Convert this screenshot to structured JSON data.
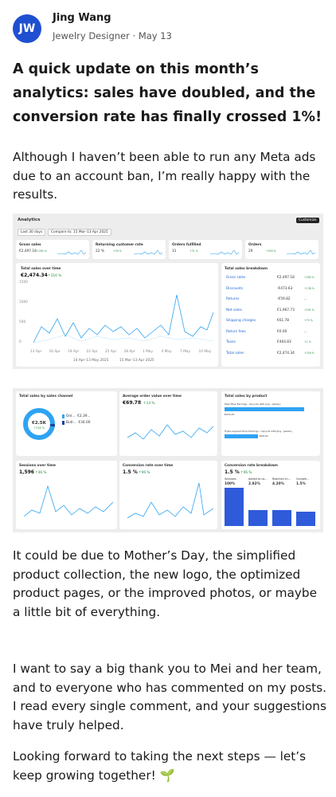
{
  "post": {
    "avatar": "JW",
    "author": "Jing Wang",
    "role": "Jewelry Designer",
    "separator": "·",
    "date": "May 13",
    "title": "A quick update on this month’s analytics: sales have doubled, and the conversion rate has finally crossed 1%!",
    "paragraphs": [
      "Although I haven’t been able to run any Meta ads due to an account ban, I’m really happy with the results.",
      "It could be due to Mother’s Day, the simplified product collection, the new logo, the optimized product pages, or the improved photos, or maybe a little bit of everything.",
      "I want to say a big thank you to Mei and her team, and to everyone who has commented on my posts. I read every single comment, and your suggestions have truly helped.",
      "Looking forward to taking the next steps — let’s keep growing together! 🌱"
    ]
  },
  "dashboard1": {
    "title": "Analytics",
    "button": "Customize",
    "filters": [
      "Last 30 days",
      "Compare to: 15 Mar–13 Apr 2025"
    ],
    "metrics": [
      {
        "label": "Gross sales",
        "value": "€2,497.18",
        "change": "↑282 %"
      },
      {
        "label": "Returning customer rate",
        "value": "22 %",
        "change": "↑30 %"
      },
      {
        "label": "Orders fulfilled",
        "value": "31",
        "change": "↑31 %"
      },
      {
        "label": "Orders",
        "value": "29",
        "change": "↑303 %"
      }
    ],
    "chart": {
      "title": "Total sales over time",
      "value": "€2,474.34",
      "change": "↑316 %",
      "yticks": [
        "1500",
        "1000",
        "500",
        "0"
      ],
      "xlabels": [
        "13 Apr",
        "16 Apr",
        "19 Apr",
        "22 Apr",
        "25 Apr",
        "28 Apr",
        "1 May",
        "4 May",
        "7 May",
        "10 May"
      ],
      "legend": [
        "14 Apr–13 May 2025",
        "15 Mar–13 Apr 2025"
      ]
    },
    "breakdown": {
      "title": "Total sales breakdown",
      "rows": [
        [
          "Gross sales",
          "€2,497.18",
          "↑282 %"
        ],
        [
          "Discounts",
          "-€473.63",
          "↑138 %"
        ],
        [
          "Returns",
          "-€59.82",
          "—"
        ],
        [
          "Net sales",
          "€1,967.73",
          "↑291 %"
        ],
        [
          "Shipping charges",
          "€61.78",
          "↑75 %"
        ],
        [
          "Return fees",
          "€0.00",
          "—"
        ],
        [
          "Taxes",
          "€464.83",
          "↑1 %"
        ],
        [
          "Total sales",
          "€2,474.34",
          "↑316 %"
        ]
      ]
    }
  },
  "dashboard2": {
    "channel": {
      "title": "Total sales by sales channel",
      "center": "€2.5K",
      "change": "↑316 %",
      "legend": [
        [
          "Onl...",
          "€2,39..."
        ],
        [
          "Butl...",
          "€34.00"
        ]
      ]
    },
    "aov": {
      "title": "Average order value over time",
      "value": "€69.78",
      "change": "↑14 %"
    },
    "product": {
      "title": "Total sales by product",
      "items": [
        [
          "Pearl Bow Earrings - Upcycle with Jing - Jewelry",
          "€219.15"
        ],
        [
          "Triple Layered Drop Earrings - Upcycle with Jing - Jewelry",
          "€90.00"
        ]
      ]
    },
    "sessions": {
      "title": "Sessions over time",
      "value": "1,596",
      "change": "↑46 %"
    },
    "conversion": {
      "title": "Conversion rate over time",
      "value": "1.5 %",
      "change": "↑96 %"
    },
    "funnel": {
      "title": "Conversion rate breakdown",
      "value": "1.5 %",
      "change": "↑96 %",
      "steps": [
        [
          "Sessions",
          "100%"
        ],
        [
          "Added to ca...",
          "2.82%"
        ],
        [
          "Reached ch...",
          "4.20%"
        ],
        [
          "Comple...",
          "1.5%"
        ]
      ]
    }
  }
}
